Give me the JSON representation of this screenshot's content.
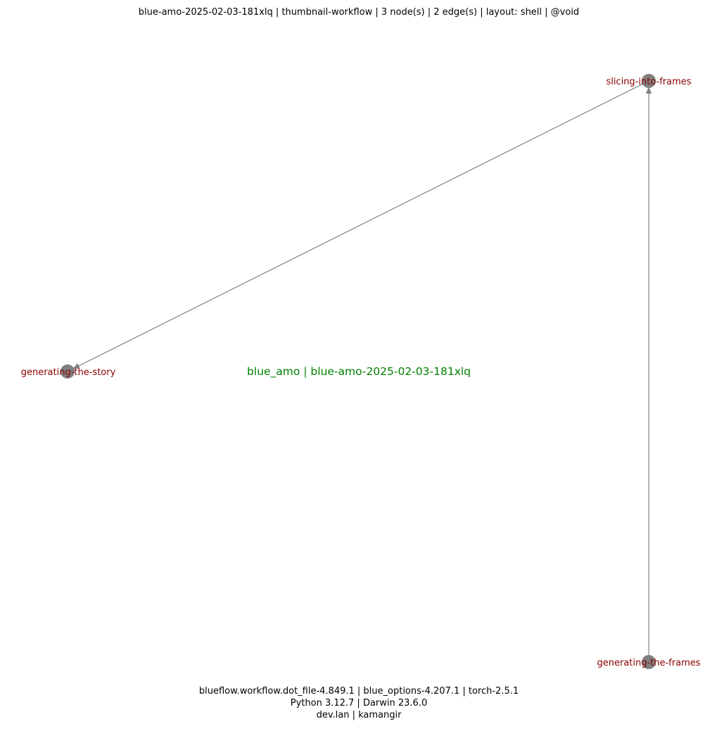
{
  "title": "blue-amo-2025-02-03-181xlq | thumbnail-workflow | 3 node(s) | 2 edge(s) | layout: shell | @void",
  "center_label": "blue_amo | blue-amo-2025-02-03-181xlq",
  "footer": {
    "line1": "blueflow.workflow.dot_file-4.849.1 | blue_options-4.207.1 | torch-2.5.1",
    "line2": "Python 3.12.7 | Darwin 23.6.0",
    "line3": "dev.lan | kamangir"
  },
  "colors": {
    "node_fill": "#808080",
    "edge": "#808080",
    "node_label": "#8b0000",
    "center_label": "#008000",
    "text": "#000000"
  },
  "nodes": [
    {
      "id": "slicing-into-frames",
      "label": "slicing-into-frames"
    },
    {
      "id": "generating-the-story",
      "label": "generating-the-story"
    },
    {
      "id": "generating-the-frames",
      "label": "generating-the-frames"
    }
  ],
  "edges": [
    {
      "from": "slicing-into-frames",
      "to": "generating-the-story"
    },
    {
      "from": "generating-the-frames",
      "to": "slicing-into-frames"
    }
  ]
}
